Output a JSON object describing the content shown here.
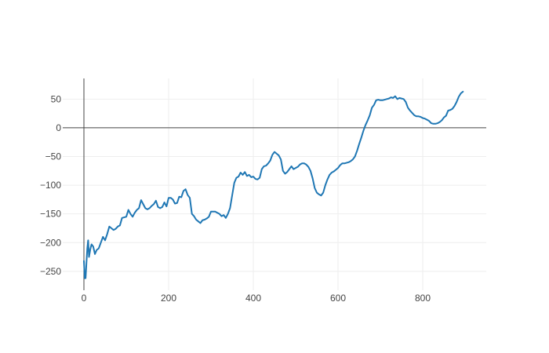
{
  "chart_data": {
    "type": "line",
    "title": "",
    "xlabel": "",
    "ylabel": "",
    "xlim": [
      -50,
      950
    ],
    "ylim": [
      -283,
      86
    ],
    "x_ticks": [
      0,
      200,
      400,
      600,
      800
    ],
    "y_ticks": [
      50,
      0,
      -50,
      -100,
      -150,
      -200,
      -250
    ],
    "x_tick_labels": [
      "0",
      "200",
      "400",
      "600",
      "800"
    ],
    "y_tick_labels": [
      "50",
      "0",
      "−50",
      "−100",
      "−150",
      "−200",
      "−250"
    ],
    "grid": true,
    "zero_lines": true,
    "legend": "none",
    "series": [
      {
        "color": "#1f77b4",
        "x": [
          0,
          2,
          4,
          6,
          8,
          10,
          12,
          15,
          18,
          22,
          26,
          30,
          35,
          40,
          45,
          50,
          55,
          60,
          65,
          70,
          75,
          80,
          85,
          90,
          95,
          100,
          105,
          110,
          115,
          120,
          125,
          130,
          135,
          140,
          145,
          150,
          155,
          160,
          165,
          170,
          175,
          180,
          185,
          190,
          195,
          200,
          205,
          210,
          215,
          220,
          225,
          230,
          235,
          240,
          245,
          250,
          255,
          260,
          265,
          270,
          275,
          280,
          285,
          290,
          295,
          300,
          305,
          310,
          315,
          320,
          325,
          330,
          335,
          340,
          345,
          350,
          355,
          360,
          365,
          370,
          375,
          380,
          385,
          390,
          395,
          400,
          405,
          410,
          415,
          420,
          425,
          430,
          435,
          440,
          445,
          450,
          455,
          460,
          465,
          470,
          475,
          480,
          485,
          490,
          495,
          500,
          505,
          510,
          515,
          520,
          525,
          530,
          535,
          540,
          545,
          550,
          555,
          560,
          565,
          570,
          575,
          580,
          585,
          590,
          595,
          600,
          605,
          610,
          615,
          620,
          625,
          630,
          635,
          640,
          645,
          650,
          655,
          660,
          665,
          670,
          675,
          680,
          685,
          690,
          695,
          700,
          705,
          710,
          715,
          720,
          725,
          730,
          735,
          740,
          745,
          750,
          755,
          760,
          765,
          770,
          775,
          780,
          785,
          790,
          795,
          800,
          805,
          810,
          815,
          820,
          825,
          830,
          835,
          840,
          845,
          850,
          855,
          860,
          865,
          870,
          875,
          880,
          885,
          890,
          895
        ],
        "y": [
          -232,
          -262,
          -262,
          -235,
          -210,
          -196,
          -225,
          -212,
          -203,
          -207,
          -220,
          -213,
          -210,
          -200,
          -190,
          -196,
          -185,
          -172,
          -175,
          -178,
          -176,
          -172,
          -170,
          -157,
          -156,
          -155,
          -143,
          -150,
          -155,
          -148,
          -143,
          -140,
          -126,
          -133,
          -140,
          -142,
          -140,
          -136,
          -133,
          -127,
          -138,
          -140,
          -138,
          -130,
          -137,
          -122,
          -122,
          -125,
          -132,
          -131,
          -120,
          -121,
          -110,
          -107,
          -117,
          -122,
          -150,
          -154,
          -160,
          -163,
          -166,
          -161,
          -160,
          -158,
          -155,
          -146,
          -146,
          -146,
          -148,
          -150,
          -154,
          -152,
          -157,
          -150,
          -140,
          -118,
          -96,
          -87,
          -85,
          -78,
          -82,
          -77,
          -84,
          -82,
          -86,
          -85,
          -89,
          -90,
          -87,
          -72,
          -67,
          -66,
          -62,
          -57,
          -47,
          -42,
          -45,
          -48,
          -55,
          -75,
          -80,
          -77,
          -72,
          -67,
          -72,
          -70,
          -68,
          -64,
          -62,
          -62,
          -64,
          -68,
          -75,
          -88,
          -105,
          -113,
          -116,
          -118,
          -113,
          -100,
          -90,
          -82,
          -78,
          -76,
          -73,
          -70,
          -65,
          -62,
          -62,
          -61,
          -60,
          -58,
          -55,
          -50,
          -40,
          -28,
          -17,
          -5,
          5,
          13,
          22,
          35,
          40,
          48,
          49,
          48,
          48,
          49,
          50,
          51,
          53,
          52,
          55,
          50,
          52,
          51,
          50,
          45,
          35,
          30,
          26,
          22,
          20,
          20,
          19,
          17,
          16,
          14,
          12,
          8,
          7,
          7,
          8,
          10,
          13,
          18,
          21,
          30,
          31,
          33,
          38,
          45,
          54,
          60,
          63
        ]
      }
    ]
  }
}
